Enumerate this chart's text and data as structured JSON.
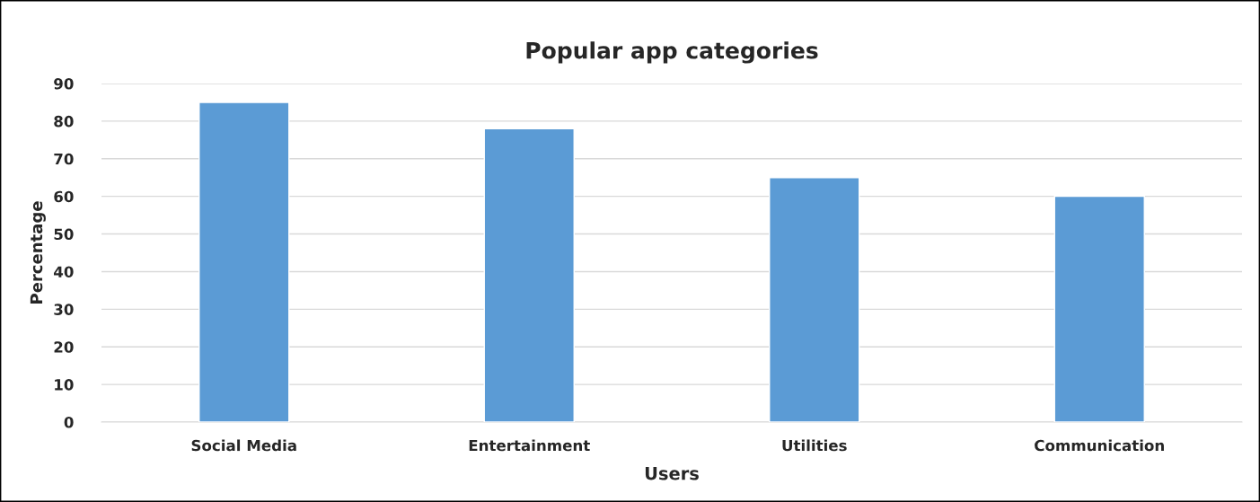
{
  "chart_data": {
    "type": "bar",
    "title": "Popular app categories",
    "xlabel": "Users",
    "ylabel": "Percentage",
    "categories": [
      "Social Media",
      "Entertainment",
      "Utilities",
      "Communication"
    ],
    "values": [
      85,
      78,
      65,
      60
    ],
    "color": "#5b9bd5",
    "ylim": [
      0,
      90
    ],
    "yticks": [
      0,
      10,
      20,
      30,
      40,
      50,
      60,
      70,
      80,
      90
    ],
    "grid": "y"
  }
}
